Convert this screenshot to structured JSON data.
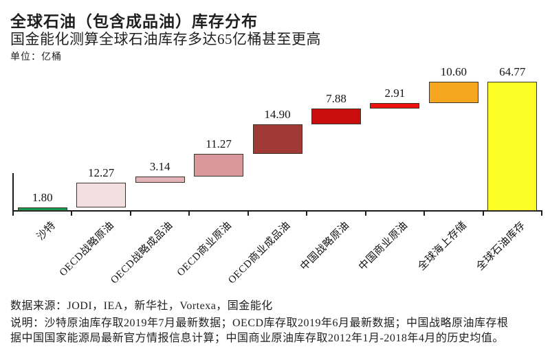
{
  "header": {
    "title": "全球石油（包含成品油）库存分布",
    "subtitle": "国金能化测算全球石油库存多达65亿桶甚至更高",
    "unit_label": "单位：亿桶"
  },
  "chart_data": {
    "type": "bar",
    "subtype": "waterfall",
    "title": "全球石油（包含成品油）库存分布",
    "subtitle": "国金能化测算全球石油库存多达65亿桶甚至更高",
    "unit": "亿桶",
    "categories": [
      "沙特",
      "OECD战略原油",
      "OECD战略成品油",
      "OECD商业原油",
      "OECD商业成品油",
      "中国战略原油",
      "中国商业原油",
      "全球海上存储",
      "全球石油库存"
    ],
    "values": [
      1.8,
      12.27,
      3.14,
      11.27,
      14.9,
      7.88,
      2.91,
      10.6,
      64.77
    ],
    "value_labels": [
      "1.80",
      "12.27",
      "3.14",
      "11.27",
      "14.90",
      "7.88",
      "2.91",
      "10.60",
      "64.77"
    ],
    "is_total": [
      false,
      false,
      false,
      false,
      false,
      false,
      false,
      false,
      true
    ],
    "cumulative_start": [
      0,
      1.8,
      14.07,
      17.21,
      28.48,
      43.38,
      51.26,
      54.17,
      0
    ],
    "cumulative_end": [
      1.8,
      14.07,
      17.21,
      28.48,
      43.38,
      51.26,
      54.17,
      64.77,
      64.77
    ],
    "bar_colors": [
      "#189a4e",
      "#f2dfe1",
      "#e3b2b6",
      "#da989c",
      "#a13a36",
      "#c90d0c",
      "#ed100d",
      "#f6a71f",
      "#fdfd26"
    ],
    "xlabel": "",
    "ylabel": "亿桶",
    "ylim": [
      0,
      66
    ],
    "grid": false,
    "legend": null,
    "x_tick_rotation_deg": 45
  },
  "footer": {
    "source_line": "数据来源：JODI，IEA，新华社，Vortexa，国金能化",
    "note_lines": [
      "说明：沙特原油库存取2019年7月最新数据；OECD库存取2019年6月最新数据；中国战略原油库存根",
      "据中国国家能源局最新官方情报信息计算；中国商业原油库存取2012年1月-2018年4月的历史均值。"
    ]
  }
}
